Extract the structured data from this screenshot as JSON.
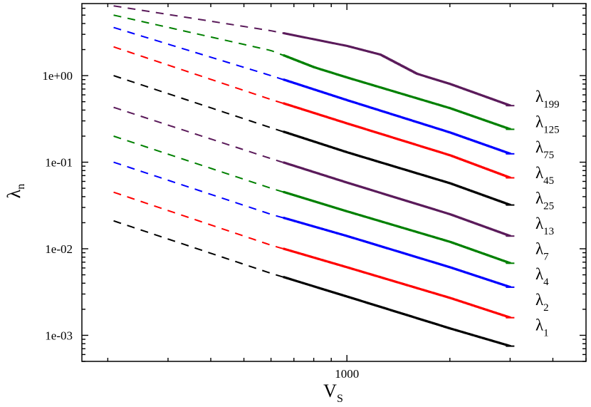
{
  "chart_data": {
    "type": "line",
    "xlabel": {
      "main": "V",
      "sub": "S"
    },
    "ylabel": {
      "main": "λ",
      "sub": "n"
    },
    "x_scale": "log",
    "y_scale": "log",
    "xlim": [
      168,
      5000
    ],
    "ylim": [
      0.0005,
      6.8
    ],
    "x_ticks": [
      {
        "value": 1000,
        "label": "1000"
      }
    ],
    "y_ticks": [
      {
        "value": 1,
        "label": "1e+00"
      },
      {
        "value": 0.1,
        "label": "1e-01"
      },
      {
        "value": 0.01,
        "label": "1e-02"
      },
      {
        "value": 0.001,
        "label": "1e-03"
      }
    ],
    "grid": false,
    "legend": "labels at right end of each curve",
    "series": [
      {
        "label": "λ",
        "index": "1",
        "color": "#000000",
        "points": [
          [
            208,
            0.021
          ],
          [
            600,
            0.0052
          ],
          [
            1000,
            0.0028
          ],
          [
            2000,
            0.0012
          ],
          [
            3000,
            0.00075
          ]
        ]
      },
      {
        "label": "λ",
        "index": "2",
        "color": "#ff0000",
        "points": [
          [
            208,
            0.045
          ],
          [
            600,
            0.011
          ],
          [
            1000,
            0.0061
          ],
          [
            2000,
            0.0027
          ],
          [
            3000,
            0.0016
          ]
        ]
      },
      {
        "label": "λ",
        "index": "4",
        "color": "#0000ff",
        "points": [
          [
            208,
            0.1
          ],
          [
            600,
            0.025
          ],
          [
            1000,
            0.014
          ],
          [
            2000,
            0.0061
          ],
          [
            3000,
            0.0036
          ]
        ]
      },
      {
        "label": "λ",
        "index": "7",
        "color": "#008000",
        "points": [
          [
            208,
            0.2
          ],
          [
            600,
            0.05
          ],
          [
            1000,
            0.027
          ],
          [
            2000,
            0.012
          ],
          [
            3000,
            0.0068
          ]
        ]
      },
      {
        "label": "λ",
        "index": "13",
        "color": "#5a1a5a",
        "points": [
          [
            208,
            0.43
          ],
          [
            600,
            0.11
          ],
          [
            1000,
            0.058
          ],
          [
            2000,
            0.025
          ],
          [
            3000,
            0.014
          ]
        ]
      },
      {
        "label": "λ",
        "index": "25",
        "color": "#000000",
        "points": [
          [
            208,
            1.0
          ],
          [
            600,
            0.25
          ],
          [
            1000,
            0.13
          ],
          [
            2000,
            0.057
          ],
          [
            3000,
            0.032
          ]
        ]
      },
      {
        "label": "λ",
        "index": "45",
        "color": "#ff0000",
        "points": [
          [
            208,
            2.15
          ],
          [
            600,
            0.53
          ],
          [
            1000,
            0.28
          ],
          [
            2000,
            0.12
          ],
          [
            3000,
            0.066
          ]
        ]
      },
      {
        "label": "λ",
        "index": "75",
        "color": "#0000ff",
        "points": [
          [
            208,
            3.6
          ],
          [
            600,
            1.0
          ],
          [
            1000,
            0.52
          ],
          [
            2000,
            0.22
          ],
          [
            3000,
            0.125
          ]
        ]
      },
      {
        "label": "λ",
        "index": "125",
        "color": "#008000",
        "points": [
          [
            208,
            5.0
          ],
          [
            600,
            1.95
          ],
          [
            800,
            1.25
          ],
          [
            1000,
            0.95
          ],
          [
            2000,
            0.42
          ],
          [
            3000,
            0.24
          ]
        ]
      },
      {
        "label": "λ",
        "index": "199",
        "color": "#5a1a5a",
        "points": [
          [
            208,
            6.4
          ],
          [
            600,
            3.3
          ],
          [
            1000,
            2.2
          ],
          [
            1250,
            1.75
          ],
          [
            1600,
            1.05
          ],
          [
            2000,
            0.8
          ],
          [
            3000,
            0.45
          ]
        ]
      }
    ]
  }
}
